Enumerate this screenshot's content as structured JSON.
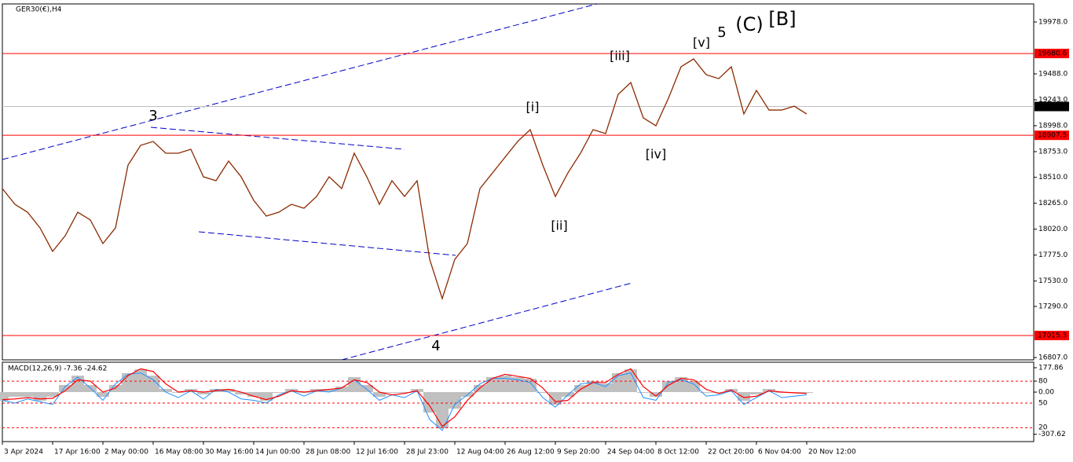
{
  "chart_data": [
    {
      "type": "line",
      "title": "GER30(€),H4",
      "categories": [
        "3 Apr 2024",
        null,
        null,
        null,
        "17 Apr 16:00",
        null,
        null,
        null,
        "2 May 00:00",
        null,
        null,
        null,
        "16 May 08:00",
        null,
        null,
        null,
        "30 May 16:00",
        null,
        null,
        null,
        "14 Jun 00:00",
        null,
        null,
        null,
        "28 Jun 08:00",
        null,
        null,
        null,
        "12 Jul 16:00",
        null,
        null,
        null,
        "28 Jul 23:00",
        null,
        null,
        null,
        "12 Aug 04:00",
        null,
        null,
        null,
        "26 Aug 12:00",
        null,
        null,
        null,
        "9 Sep 20:00",
        null,
        null,
        null,
        "24 Sep 04:00",
        null,
        null,
        null,
        "8 Oct 12:00",
        null,
        null,
        null,
        "22 Oct 20:00",
        null,
        null,
        null,
        "6 Nov 04:00",
        null,
        null,
        null,
        "20 Nov 12:00"
      ],
      "series": [
        {
          "color": "#8b2a00",
          "values": [
            18404,
            18255,
            18181,
            18032,
            17810,
            17958,
            18181,
            18107,
            17884,
            18032,
            18626,
            18812,
            18849,
            18738,
            18738,
            18775,
            18515,
            18478,
            18664,
            18515,
            18292,
            18144,
            18181,
            18255,
            18218,
            18329,
            18515,
            18404,
            18738,
            18515,
            18255,
            18478,
            18329,
            18478,
            17735,
            17364,
            17735,
            17884,
            18404,
            18552,
            18701,
            18849,
            18961,
            18626,
            18329,
            18552,
            18738,
            18961,
            18924,
            19295,
            19406,
            19072,
            18998,
            19258,
            19555,
            19629,
            19480,
            19443,
            19555,
            19109,
            19332,
            19146,
            19146,
            19183,
            19109
          ]
        }
      ],
      "ylim": [
        16785,
        20149
      ],
      "yticks": [
        {
          "value": 19978,
          "label": "19978.0"
        },
        {
          "value": 19488,
          "label": "19488.0"
        },
        {
          "value": 19243,
          "label": "19243.0"
        },
        {
          "value": 18998,
          "label": "18998.0"
        },
        {
          "value": 18753,
          "label": "18753.0"
        },
        {
          "value": 18510,
          "label": "18510.0"
        },
        {
          "value": 18265,
          "label": "18265.0"
        },
        {
          "value": 18020,
          "label": "18020.0"
        },
        {
          "value": 17775,
          "label": "17775.0"
        },
        {
          "value": 17530,
          "label": "17530.0"
        },
        {
          "value": 17290,
          "label": "17290.0"
        },
        {
          "value": 16807,
          "label": "16807.0"
        }
      ],
      "levels": [
        19680.6,
        18907.5,
        17015.3
      ],
      "level_color": "#ff0000",
      "current": 19179.7,
      "current_color": "#c0c0c0",
      "annotations": [
        {
          "text": "3",
          "color": "#0000ff"
        },
        {
          "text": "4",
          "color": "#0000ff"
        },
        {
          "text": "5",
          "color": "#0000ff"
        },
        {
          "text": "[i]",
          "color": "#2e8b00"
        },
        {
          "text": "[ii]",
          "color": "#2e8b00"
        },
        {
          "text": "[iii]",
          "color": "#2e8b00"
        },
        {
          "text": "[iv]",
          "color": "#2e8b00"
        },
        {
          "text": "[v]",
          "color": "#2e8b00"
        },
        {
          "text": "(C)",
          "color": "#ff2020"
        },
        {
          "text": "[B]",
          "color": "#000000"
        }
      ]
    },
    {
      "type": "macd",
      "title": "MACD(12,26,9) -7.36 -24.62",
      "series": [
        {
          "color": "#c0c0c0",
          "values": [
            -63,
            -34,
            -34,
            -63,
            -34,
            52,
            120,
            52,
            -34,
            52,
            138,
            166,
            120,
            23,
            -6,
            23,
            -17,
            23,
            23,
            -17,
            -34,
            -63,
            -6,
            23,
            -6,
            23,
            23,
            40,
            109,
            52,
            -34,
            -6,
            -6,
            23,
            -149,
            -264,
            -121,
            -34,
            52,
            109,
            120,
            109,
            98,
            -6,
            -92,
            -34,
            52,
            80,
            63,
            138,
            166,
            -6,
            -34,
            80,
            109,
            80,
            -6,
            -6,
            23,
            -63,
            -17,
            23,
            -6,
            -6,
            -6
          ]
        },
        {
          "color": "#ff0000",
          "values": [
            -55,
            -50,
            -40,
            -50,
            -45,
            10,
            90,
            80,
            0,
            30,
            120,
            170,
            150,
            60,
            0,
            10,
            0,
            10,
            20,
            0,
            -30,
            -55,
            -30,
            10,
            0,
            10,
            20,
            30,
            90,
            70,
            0,
            -20,
            -10,
            10,
            -100,
            -250,
            -180,
            -60,
            30,
            100,
            130,
            115,
            100,
            30,
            -70,
            -60,
            20,
            70,
            70,
            130,
            170,
            40,
            -30,
            50,
            100,
            90,
            20,
            -10,
            15,
            -40,
            -30,
            10,
            0,
            -5,
            -10
          ]
        },
        {
          "color": "#1e90ff",
          "values": [
            -60,
            -80,
            -50,
            -70,
            -90,
            40,
            110,
            30,
            -60,
            60,
            130,
            140,
            90,
            0,
            -40,
            10,
            -50,
            20,
            0,
            -50,
            -60,
            -80,
            -20,
            10,
            -30,
            10,
            0,
            30,
            90,
            20,
            -60,
            -20,
            -40,
            10,
            -200,
            -280,
            -90,
            -20,
            60,
            100,
            100,
            90,
            70,
            -40,
            -110,
            -20,
            60,
            70,
            40,
            120,
            140,
            -40,
            -60,
            70,
            90,
            60,
            -30,
            -20,
            10,
            -90,
            -40,
            10,
            -40,
            -30,
            -20
          ]
        }
      ],
      "ylim": [
        -361,
        218
      ],
      "yticks": [
        177.86,
        80,
        {
          "value": 0,
          "label": "0.00"
        },
        -307.62
      ],
      "levels": [
        80,
        -80,
        -260
      ],
      "level_color": "#ff0000",
      "annotations": [
        "50",
        "20"
      ]
    }
  ]
}
